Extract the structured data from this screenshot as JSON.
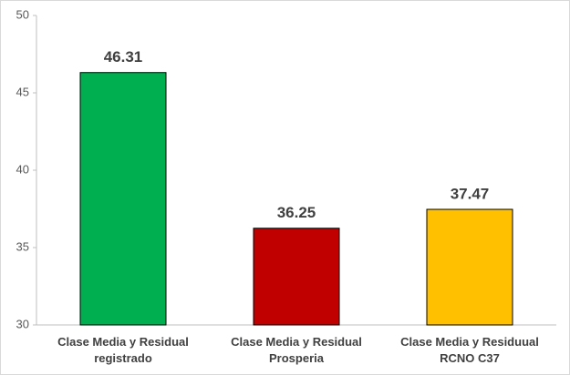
{
  "chart_data": {
    "type": "bar",
    "categories": [
      "Clase Media y Residual\nregistrado",
      "Clase Media y Residual\nProsperia",
      "Clase Media y Residuual\nRCNO C37"
    ],
    "values": [
      46.31,
      36.25,
      37.47
    ],
    "colors": [
      "#00b050",
      "#c00000",
      "#ffc000"
    ],
    "ylim": [
      30,
      50
    ],
    "yticks": [
      30,
      35,
      40,
      45,
      50
    ],
    "grid": false
  }
}
